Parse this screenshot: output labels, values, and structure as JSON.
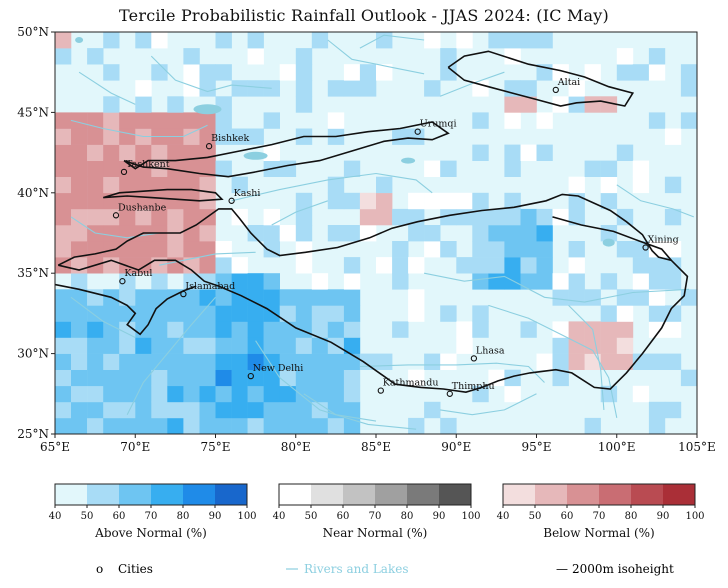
{
  "title": "Tercile Probabilistic Rainfall Outlook - JJAS 2024: (IC  May)",
  "map": {
    "lon_range": [
      65,
      105
    ],
    "lat_range": [
      25,
      50
    ],
    "lon_ticks": [
      "65°E",
      "70°E",
      "75°E",
      "80°E",
      "85°E",
      "90°E",
      "95°E",
      "100°E",
      "105°E"
    ],
    "lat_ticks": [
      "25°N",
      "30°N",
      "35°N",
      "40°N",
      "45°N",
      "50°N"
    ],
    "colors": {
      "background_above_light": "#e2f7fb",
      "river": "#8ccfe0",
      "isoheight": "#111111"
    },
    "cities": [
      {
        "name": "Altai",
        "lon": 96.2,
        "lat": 46.4
      },
      {
        "name": "Urumqi",
        "lon": 87.6,
        "lat": 43.8
      },
      {
        "name": "Bishkek",
        "lon": 74.6,
        "lat": 42.9
      },
      {
        "name": "Tashkent",
        "lon": 69.3,
        "lat": 41.3
      },
      {
        "name": "Kashi",
        "lon": 76.0,
        "lat": 39.5
      },
      {
        "name": "Dushanbe",
        "lon": 68.8,
        "lat": 38.6
      },
      {
        "name": "Xining",
        "lon": 101.8,
        "lat": 36.6
      },
      {
        "name": "Kabul",
        "lon": 69.2,
        "lat": 34.5
      },
      {
        "name": "Islamabad",
        "lon": 73.0,
        "lat": 33.7
      },
      {
        "name": "Lhasa",
        "lon": 91.1,
        "lat": 29.7
      },
      {
        "name": "New Delhi",
        "lon": 77.2,
        "lat": 28.6
      },
      {
        "name": "Kathmandu",
        "lon": 85.3,
        "lat": 27.7
      },
      {
        "name": "Thimphu",
        "lon": 89.6,
        "lat": 27.5
      }
    ]
  },
  "colorbars": [
    {
      "title": "Above Normal (%)",
      "ticks": [
        "40",
        "50",
        "60",
        "70",
        "80",
        "90",
        "100"
      ],
      "colors": [
        "#e2f7fb",
        "#a8dcf6",
        "#6ec5f2",
        "#37aef0",
        "#1f8be8",
        "#1867cc",
        "#0f4596"
      ]
    },
    {
      "title": "Near Normal (%)",
      "ticks": [
        "40",
        "50",
        "60",
        "70",
        "80",
        "90",
        "100"
      ],
      "colors": [
        "#ffffff",
        "#e0e0e0",
        "#c2c2c2",
        "#a0a0a0",
        "#7a7a7a",
        "#555555",
        "#000000"
      ]
    },
    {
      "title": "Below Normal (%)",
      "ticks": [
        "40",
        "50",
        "60",
        "70",
        "80",
        "90",
        "100"
      ],
      "colors": [
        "#f3dede",
        "#e6b8ba",
        "#d89194",
        "#c96d73",
        "#b94b52",
        "#aa2f37",
        "#991c20"
      ]
    }
  ],
  "legend": {
    "cities_symbol": "o",
    "cities_label": "Cities",
    "rivers_label": "Rivers and Lakes",
    "isoheight_symbol": "—",
    "isoheight_label": "2000m isoheight",
    "rivers_color": "#8ccfe0"
  },
  "anomaly_regions": {
    "below_normal": [
      {
        "lon": [
          65,
          75
        ],
        "lat": [
          35,
          45.5
        ],
        "level": 2
      },
      {
        "lon": [
          72,
          75.5
        ],
        "lat": [
          40.5,
          42.5
        ],
        "level": 1
      },
      {
        "lon": [
          65,
          66
        ],
        "lat": [
          49.5,
          50
        ],
        "level": 1
      },
      {
        "lon": [
          93.5,
          95.5
        ],
        "lat": [
          45.5,
          46.5
        ],
        "level": 1
      },
      {
        "lon": [
          98.5,
          100
        ],
        "lat": [
          45,
          46.5
        ],
        "level": 1
      },
      {
        "lon": [
          97.5,
          101
        ],
        "lat": [
          29,
          32
        ],
        "level": 1
      },
      {
        "lon": [
          84,
          86.5
        ],
        "lat": [
          38.5,
          40
        ],
        "level": 1
      }
    ],
    "above_normal": [
      {
        "lon": [
          65,
          84.5
        ],
        "lat": [
          25,
          34.5
        ],
        "level": 2
      },
      {
        "lon": [
          75.5,
          79
        ],
        "lat": [
          26,
          35
        ],
        "level": 3
      },
      {
        "lon": [
          91.5,
          96
        ],
        "lat": [
          34.5,
          39
        ],
        "level": 2
      },
      {
        "lon": [
          94.5,
          95.5
        ],
        "lat": [
          37.5,
          38.5
        ],
        "level": 3
      }
    ]
  }
}
